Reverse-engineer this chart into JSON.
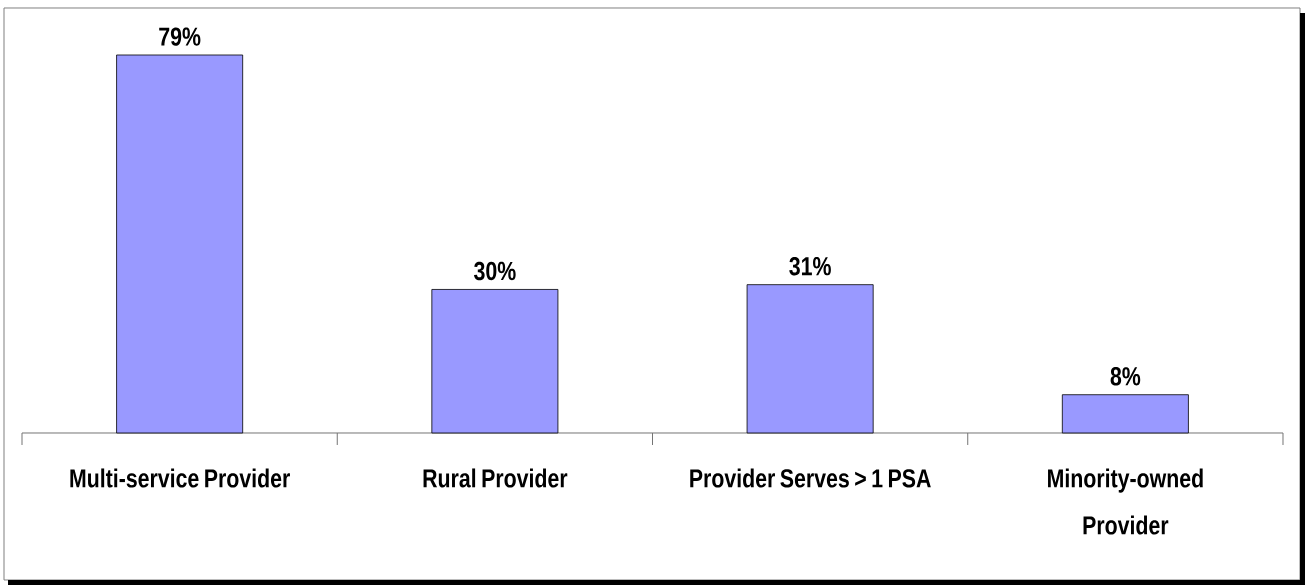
{
  "chart_data": {
    "type": "bar",
    "categories": [
      "Multi-service Provider",
      "Rural Provider",
      "Provider Serves > 1 PSA",
      "Minority-owned Provider"
    ],
    "values": [
      79,
      30,
      31,
      8
    ],
    "value_labels": [
      "79%",
      "30%",
      "31%",
      "8%"
    ],
    "color": "#9999ff"
  }
}
